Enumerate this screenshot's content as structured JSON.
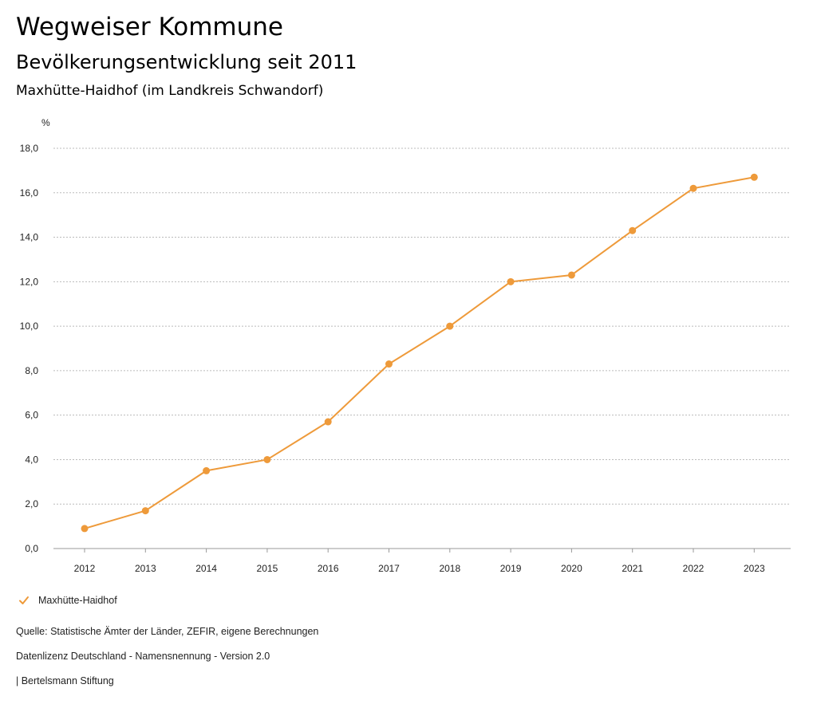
{
  "header": {
    "title": "Wegweiser Kommune",
    "subtitle": "Bevölkerungsentwicklung seit 2011",
    "region": "Maxhütte-Haidhof (im Landkreis Schwandorf)"
  },
  "legend": {
    "label": "Maxhütte-Haidhof",
    "icon": "check-icon"
  },
  "footer": {
    "source": "Quelle: Statistische Ämter der Länder, ZEFIR, eigene Berechnungen",
    "license": "Datenlizenz Deutschland - Namensnennung - Version 2.0",
    "credit": "| Bertelsmann Stiftung"
  },
  "colors": {
    "series": "#EE9A3A",
    "grid": "#BBBBBB",
    "axis": "#999999"
  },
  "chart_data": {
    "type": "line",
    "title": "Bevölkerungsentwicklung seit 2011",
    "ylabel": "%",
    "xlabel": "",
    "ylim": [
      0,
      18
    ],
    "yticks": [
      0,
      2,
      4,
      6,
      8,
      10,
      12,
      14,
      16,
      18
    ],
    "grid": true,
    "legend_position": "bottom-left",
    "categories": [
      "2012",
      "2013",
      "2014",
      "2015",
      "2016",
      "2017",
      "2018",
      "2019",
      "2020",
      "2021",
      "2022",
      "2023"
    ],
    "series": [
      {
        "name": "Maxhütte-Haidhof",
        "values": [
          0.9,
          1.7,
          3.5,
          4.0,
          5.7,
          8.3,
          10.0,
          12.0,
          12.3,
          14.3,
          16.2,
          16.7
        ]
      }
    ]
  }
}
